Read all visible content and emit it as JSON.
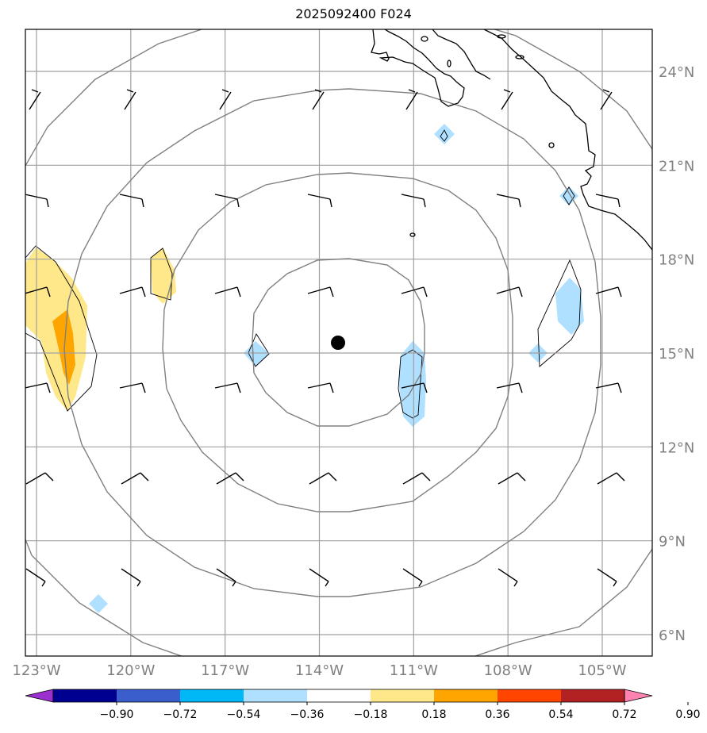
{
  "title": "2025092400 F024",
  "map": {
    "lat_ticks": [
      "24°N",
      "21°N",
      "18°N",
      "15°N",
      "12°N",
      "9°N",
      "6°N"
    ],
    "lon_ticks": [
      "123°W",
      "120°W",
      "117°W",
      "114°W",
      "111°W",
      "108°W",
      "105°W"
    ],
    "lat_values": [
      24,
      21,
      18,
      15,
      12,
      9,
      6
    ],
    "lon_values": [
      -123,
      -120,
      -117,
      -114,
      -111,
      -108,
      -105
    ],
    "center_marker": {
      "lon": -113.4,
      "lat": 15.3
    },
    "grid_color": "#a0a0a0",
    "range_ring_color": "#808080",
    "coastline_color": "#000000"
  },
  "colorbar": {
    "tick_labels": [
      "−0.90",
      "−0.72",
      "−0.54",
      "−0.36",
      "−0.18",
      "0.18",
      "0.36",
      "0.54",
      "0.72",
      "0.90"
    ],
    "colors": [
      "#9b30d0",
      "#000090",
      "#3a5fcd",
      "#00b8f5",
      "#b0e0ff",
      "#ffffff",
      "#ffe88a",
      "#ffa500",
      "#ff4500",
      "#b22222",
      "#ff82b0"
    ]
  },
  "wind_barbs_present": true
}
